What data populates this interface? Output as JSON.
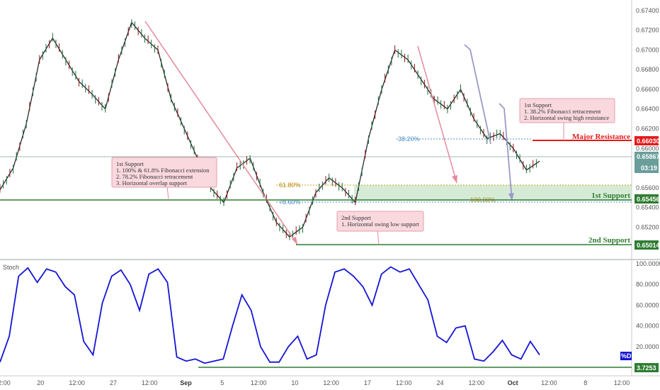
{
  "chart_data": [
    {
      "type": "candlestick",
      "title": "",
      "ylim": [
        0.6495,
        0.6745
      ],
      "y_ticks": [
        "0.67400",
        "0.67200",
        "0.67000",
        "0.66800",
        "0.66600",
        "0.66400",
        "0.66200",
        "0.66000",
        "0.65800",
        "0.65600",
        "0.65400",
        "0.65200",
        "0.65000"
      ],
      "x_ticks": [
        "2:00",
        "20",
        "12:00",
        "27",
        "12:00",
        "Sep",
        "5",
        "12:00",
        "10",
        "12:00",
        "17",
        "12:00",
        "24",
        "12:00",
        "Oct",
        "12:00",
        "8",
        "12:00"
      ],
      "price_path_approx": [
        0.6558,
        0.658,
        0.6625,
        0.669,
        0.6712,
        0.669,
        0.6668,
        0.6655,
        0.664,
        0.669,
        0.6728,
        0.6712,
        0.67,
        0.665,
        0.662,
        0.659,
        0.656,
        0.6545,
        0.658,
        0.659,
        0.6555,
        0.6525,
        0.651,
        0.652,
        0.6555,
        0.657,
        0.656,
        0.6545,
        0.661,
        0.666,
        0.67,
        0.669,
        0.667,
        0.665,
        0.664,
        0.666,
        0.663,
        0.661,
        0.6615,
        0.66,
        0.6578,
        0.6587
      ],
      "current_price": "0.65867",
      "countdown": "03:19",
      "levels": {
        "major_resistance": {
          "price": "0.66030",
          "label": "Major Resistance",
          "color": "#e51a1a"
        },
        "first_support": {
          "price": "0.65456",
          "label": "1st Support",
          "color": "#2e7d32"
        },
        "second_support": {
          "price": "0.65014",
          "label": "2nd Support",
          "color": "#2e7d32"
        }
      },
      "fib_labels": {
        "f618": "61.80%",
        "f786": "78.60%",
        "f382": "38.20%",
        "f100": "100.00%"
      },
      "notes": {
        "left": [
          "1st Support",
          "1. 100% & 61.8% Fibonacci extension",
          "2. 78.2% Fibonacci retracement",
          "3. Horizontal overlap support"
        ],
        "middle": [
          "2nd Support",
          "1. Horizontal swing low support"
        ],
        "right": [
          "1st Support",
          "1. 38.2% Fibonacci retracement",
          "2. Horizontal swing high resistance"
        ]
      }
    },
    {
      "type": "line",
      "title": "Stoch",
      "ylim": [
        0,
        100
      ],
      "y_ticks": [
        "100.0000",
        "80.0000",
        "60.0000",
        "40.0000",
        "20.0000"
      ],
      "series": [
        {
          "name": "%D",
          "color": "#1414d6",
          "values": [
            5,
            30,
            88,
            96,
            82,
            95,
            92,
            78,
            70,
            25,
            12,
            62,
            88,
            94,
            80,
            55,
            90,
            95,
            82,
            10,
            6,
            8,
            4,
            6,
            8,
            40,
            70,
            55,
            20,
            5,
            5,
            20,
            30,
            8,
            12,
            60,
            92,
            95,
            88,
            78,
            60,
            90,
            97,
            92,
            95,
            80,
            65,
            30,
            24,
            38,
            40,
            8,
            6,
            15,
            26,
            12,
            8,
            25,
            12
          ]
        }
      ],
      "current_value": "3.7253",
      "level_line_value": 3.7253
    }
  ]
}
